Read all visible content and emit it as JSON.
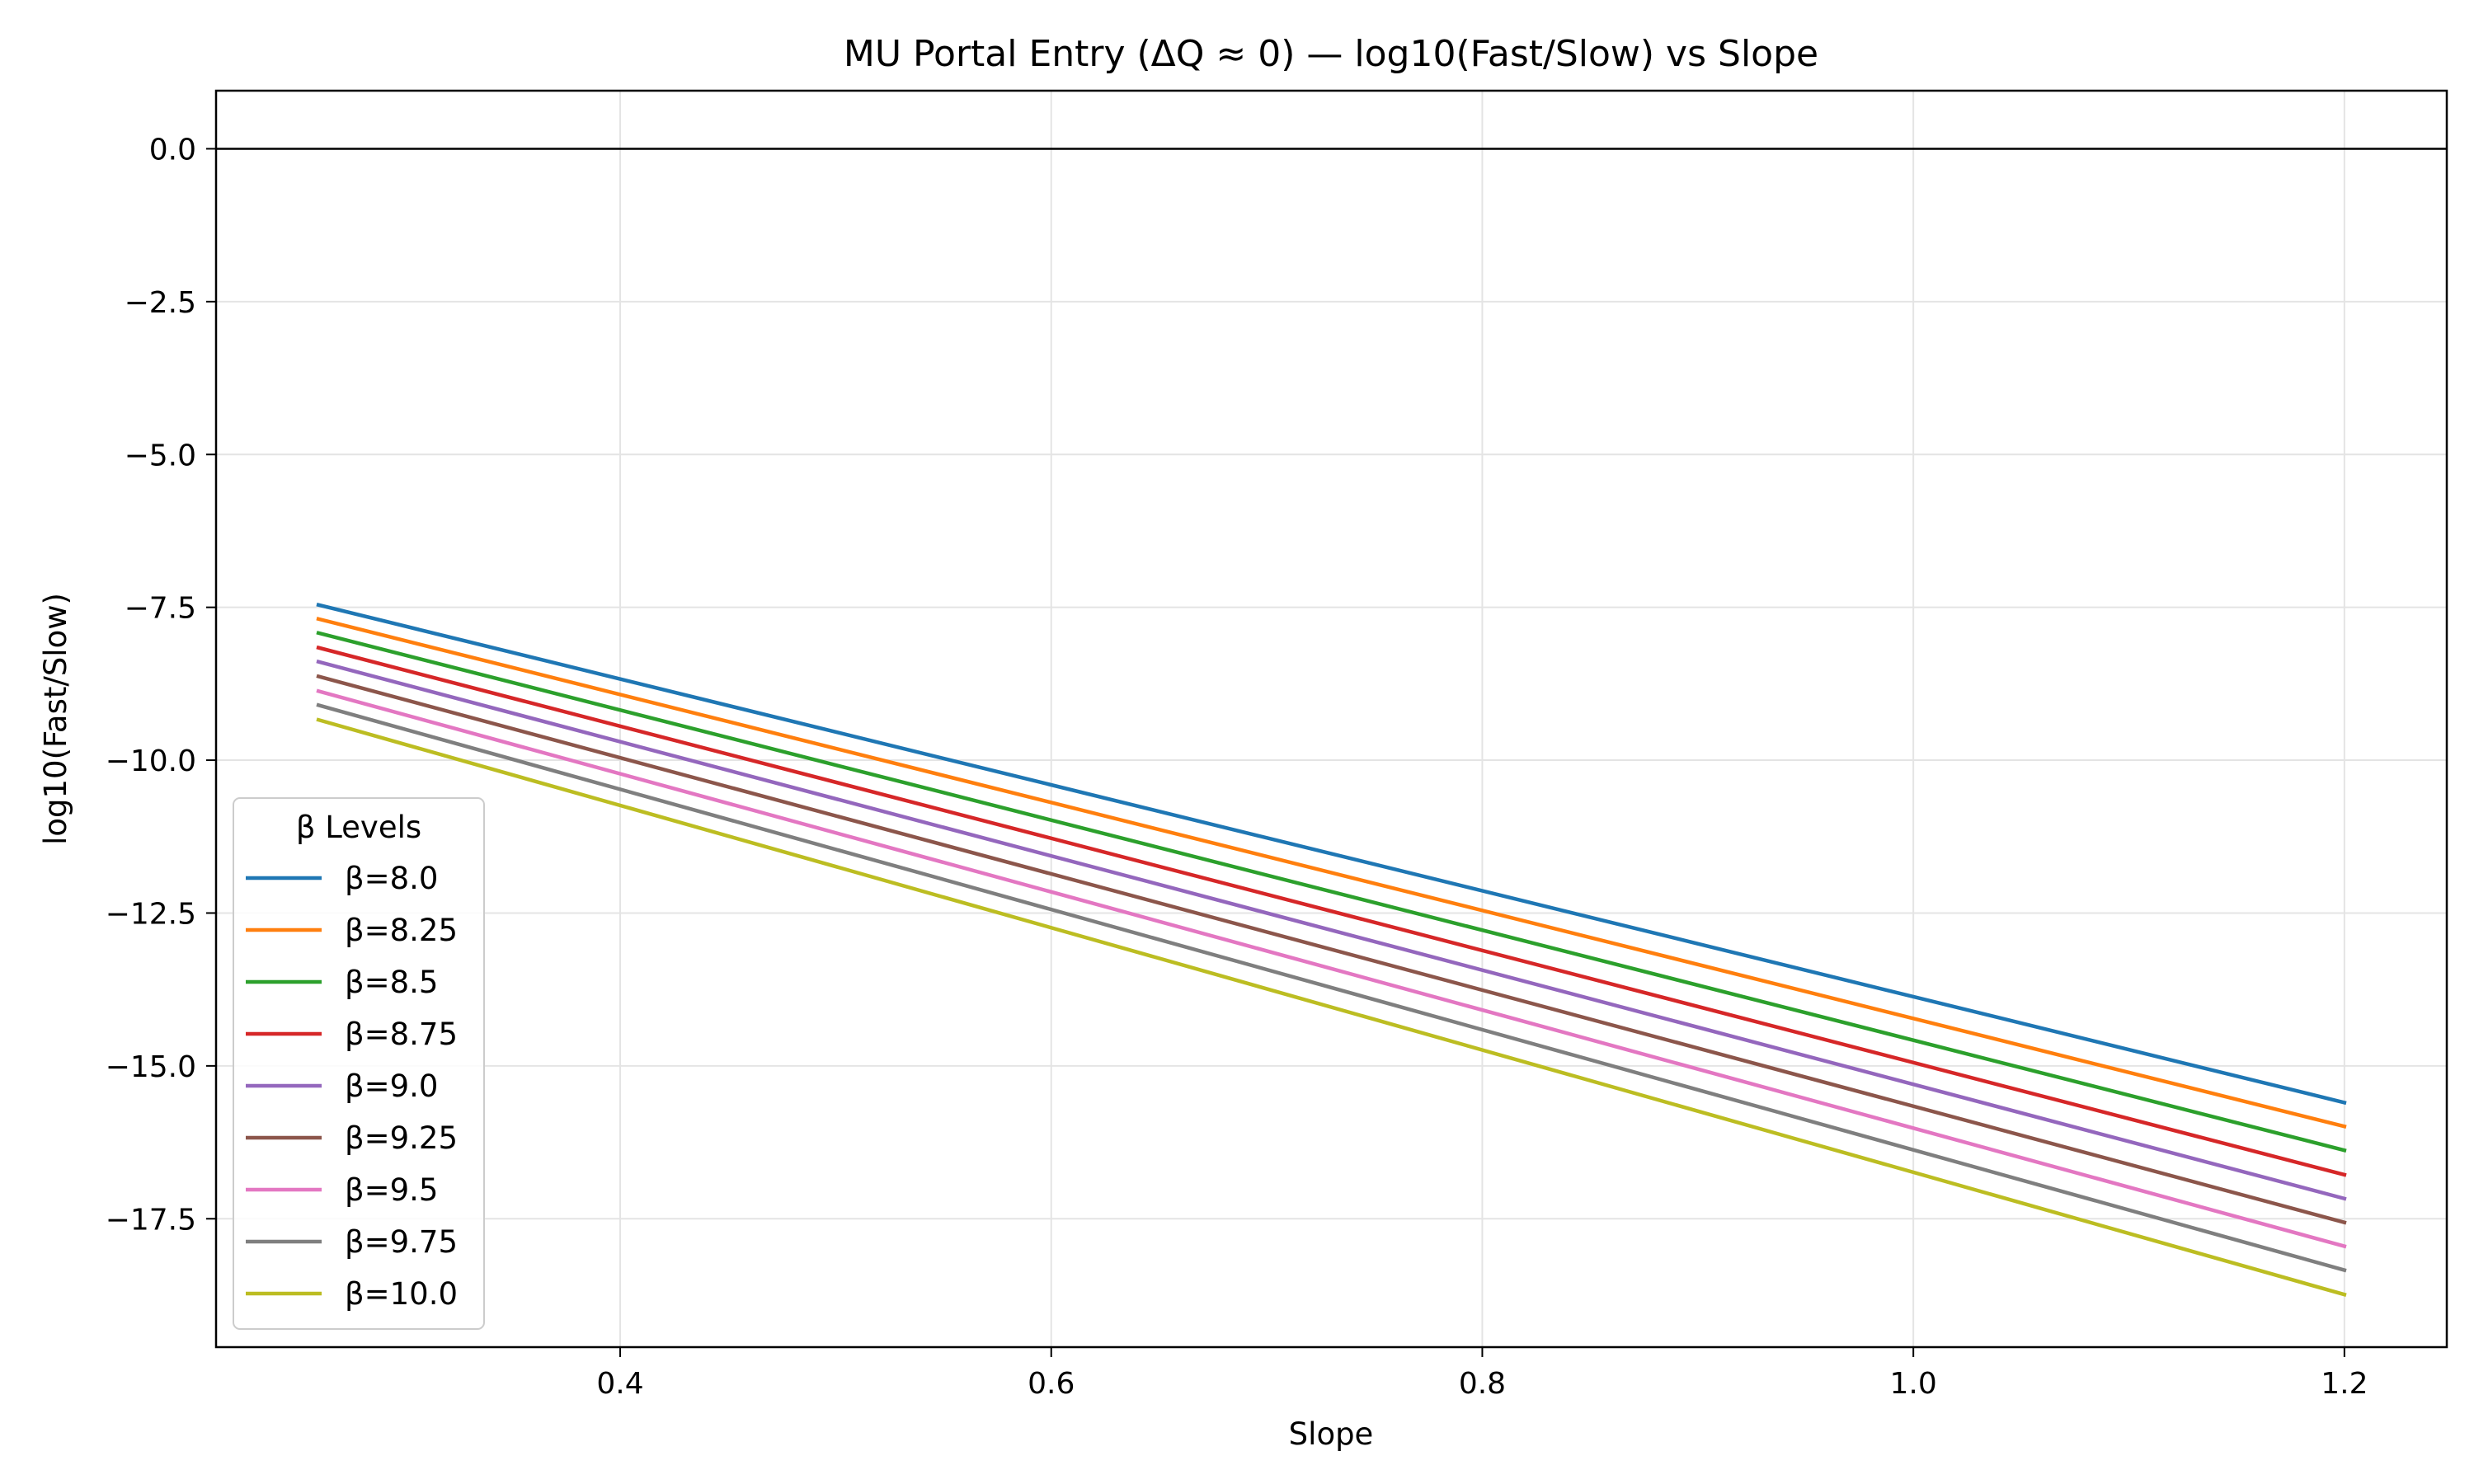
{
  "chart_data": {
    "type": "line",
    "title": "MU Portal Entry (ΔQ ≈ 0) — log10(Fast/Slow) vs Slope",
    "xlabel": "Slope",
    "ylabel": "log10(Fast/Slow)",
    "xlim": [
      0.2125,
      1.2475
    ],
    "ylim": [
      -19.6,
      0.95
    ],
    "xticks": [
      0.4,
      0.6,
      0.8,
      1.0,
      1.2
    ],
    "xtick_labels": [
      "0.4",
      "0.6",
      "0.8",
      "1.0",
      "1.2"
    ],
    "yticks": [
      0.0,
      -2.5,
      -5.0,
      -7.5,
      -10.0,
      -12.5,
      -15.0,
      -17.5
    ],
    "ytick_labels": [
      "0.0",
      "−2.5",
      "−5.0",
      "−7.5",
      "−10.0",
      "−12.5",
      "−15.0",
      "−17.5"
    ],
    "grid": true,
    "reference_line": {
      "y": 0.0,
      "color": "#000000"
    },
    "legend": {
      "title": "β Levels",
      "location": "lower-left"
    },
    "x": [
      0.26,
      1.2
    ],
    "series": [
      {
        "name": "β=8.0",
        "color": "#1f77b4",
        "values": [
          -7.46,
          -15.6
        ]
      },
      {
        "name": "β=8.25",
        "color": "#ff7f0e",
        "values": [
          -7.69,
          -15.99
        ]
      },
      {
        "name": "β=8.5",
        "color": "#2ca02c",
        "values": [
          -7.92,
          -16.38
        ]
      },
      {
        "name": "β=8.75",
        "color": "#d62728",
        "values": [
          -8.16,
          -16.78
        ]
      },
      {
        "name": "β=9.0",
        "color": "#9467bd",
        "values": [
          -8.39,
          -17.17
        ]
      },
      {
        "name": "β=9.25",
        "color": "#8c564b",
        "values": [
          -8.63,
          -17.56
        ]
      },
      {
        "name": "β=9.5",
        "color": "#e377c2",
        "values": [
          -8.87,
          -17.95
        ]
      },
      {
        "name": "β=9.75",
        "color": "#7f7f7f",
        "values": [
          -9.1,
          -18.34
        ]
      },
      {
        "name": "β=10.0",
        "color": "#bcbd22",
        "values": [
          -9.34,
          -18.74
        ]
      }
    ]
  }
}
